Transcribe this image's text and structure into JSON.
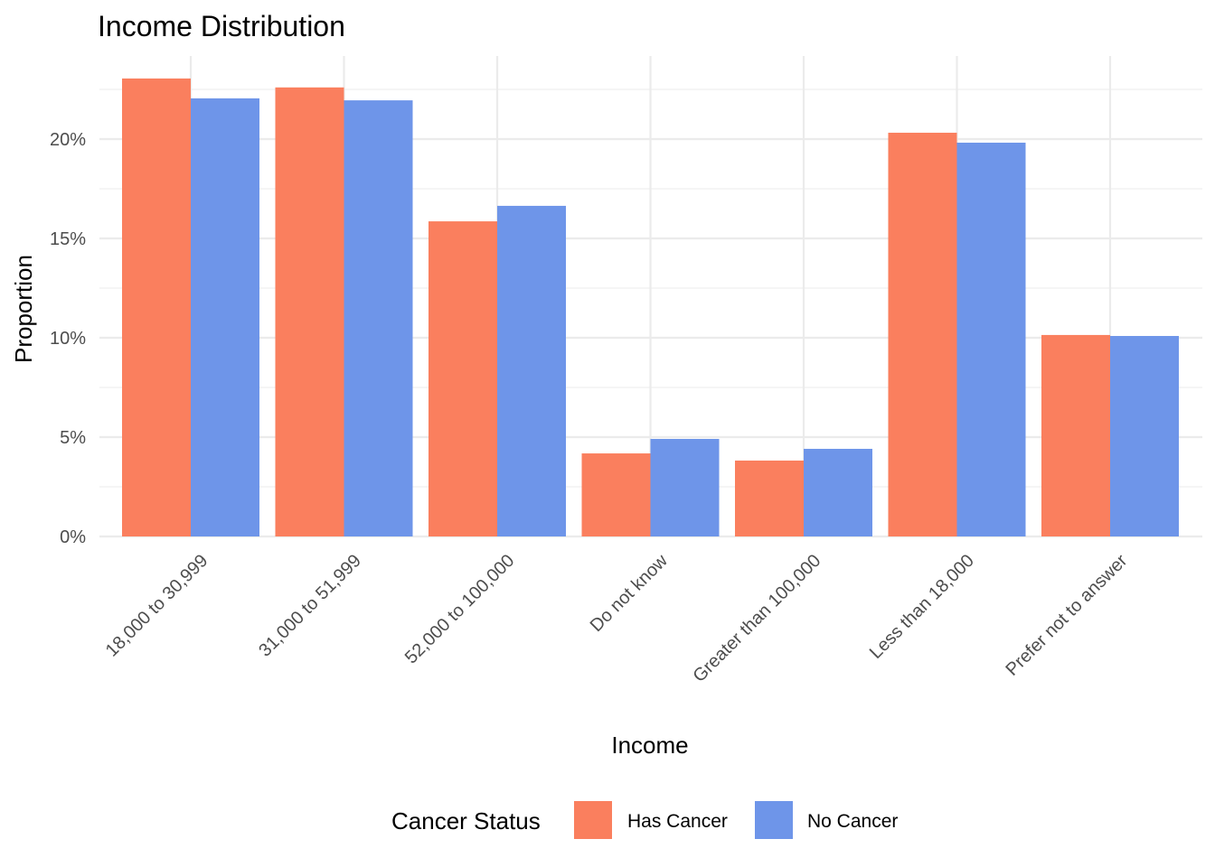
{
  "chart_data": {
    "type": "bar",
    "title": "Income Distribution",
    "xlabel": "Income",
    "ylabel": "Proportion",
    "categories": [
      "18,000 to 30,999",
      "31,000 to 51,999",
      "52,000 to 100,000",
      "Do not know",
      "Greater than 100,000",
      "Less than 18,000",
      "Prefer not to answer"
    ],
    "series": [
      {
        "name": "Has Cancer",
        "color": "#fa7f5e",
        "values": [
          0.2305,
          0.226,
          0.1586,
          0.0418,
          0.0382,
          0.2032,
          0.1014
        ]
      },
      {
        "name": "No Cancer",
        "color": "#6e95e9",
        "values": [
          0.2205,
          0.2195,
          0.1664,
          0.0491,
          0.0441,
          0.1982,
          0.1009
        ]
      }
    ],
    "ylim": [
      0,
      0.24
    ],
    "yticks": [
      0,
      0.05,
      0.1,
      0.15,
      0.2
    ],
    "ytick_labels": [
      "0%",
      "5%",
      "10%",
      "15%",
      "20%"
    ],
    "grid": true,
    "legend": {
      "title": "Cancer Status",
      "position": "bottom",
      "entries": [
        "Has Cancer",
        "No Cancer"
      ]
    }
  }
}
